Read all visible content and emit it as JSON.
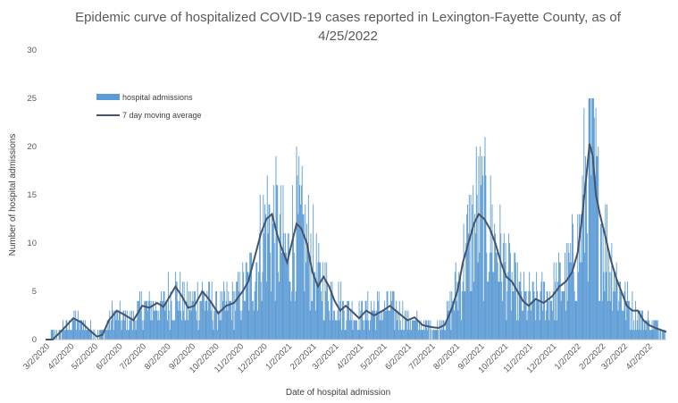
{
  "chart_data": {
    "type": "bar",
    "title_line1": "Epidemic curve of hospitalized COVID-19 cases reported in Lexington-Fayette County, as of",
    "title_line2": "4/25/2022",
    "xlabel": "Date of hospital admission",
    "ylabel": "Number of hospital admissions",
    "ylim": [
      0,
      30
    ],
    "yticks": [
      0,
      5,
      10,
      15,
      20,
      25,
      30
    ],
    "xlim": [
      "2020-03-01",
      "2022-04-24"
    ],
    "x_tick_dates": [
      "2020-03-02",
      "2020-04-02",
      "2020-05-02",
      "2020-06-02",
      "2020-07-02",
      "2020-08-02",
      "2020-09-02",
      "2020-10-02",
      "2020-11-02",
      "2020-12-02",
      "2021-01-02",
      "2021-02-02",
      "2021-03-02",
      "2021-04-02",
      "2021-05-02",
      "2021-06-02",
      "2021-07-02",
      "2021-08-02",
      "2021-09-02",
      "2021-10-02",
      "2021-11-02",
      "2021-12-02",
      "2022-01-02",
      "2022-02-02",
      "2022-03-02",
      "2022-04-02"
    ],
    "x_tick_labels": [
      "3/2/2020",
      "4/2/2020",
      "5/2/2020",
      "6/2/2020",
      "7/2/2020",
      "8/2/2020",
      "9/2/2020",
      "10/2/2020",
      "11/2/2020",
      "12/2/2020",
      "1/2/2021",
      "2/2/2021",
      "3/2/2021",
      "4/2/2021",
      "5/2/2021",
      "6/2/2021",
      "7/2/2021",
      "8/2/2021",
      "9/2/2021",
      "10/2/2021",
      "11/2/2021",
      "12/2/2021",
      "1/2/2022",
      "2/2/2022",
      "3/2/2022",
      "4/2/2022"
    ],
    "legend": {
      "placement": "top-left"
    },
    "grid": false,
    "series": [
      {
        "name": "hospital admissions",
        "kind": "bar",
        "color": "#5b9bd5",
        "daily_level_estimate": [
          {
            "date": "2020-03-01",
            "value": 0
          },
          {
            "date": "2020-03-20",
            "value": 1
          },
          {
            "date": "2020-04-05",
            "value": 2
          },
          {
            "date": "2020-04-25",
            "value": 1
          },
          {
            "date": "2020-05-10",
            "value": 0.5
          },
          {
            "date": "2020-05-25",
            "value": 2.5
          },
          {
            "date": "2020-06-15",
            "value": 2
          },
          {
            "date": "2020-07-05",
            "value": 3.5
          },
          {
            "date": "2020-07-25",
            "value": 3.3
          },
          {
            "date": "2020-08-10",
            "value": 5
          },
          {
            "date": "2020-08-25",
            "value": 3.5
          },
          {
            "date": "2020-09-15",
            "value": 4.5
          },
          {
            "date": "2020-10-05",
            "value": 3
          },
          {
            "date": "2020-10-25",
            "value": 4
          },
          {
            "date": "2020-11-15",
            "value": 6
          },
          {
            "date": "2020-12-05",
            "value": 12
          },
          {
            "date": "2020-12-20",
            "value": 11
          },
          {
            "date": "2020-12-31",
            "value": 8
          },
          {
            "date": "2021-01-10",
            "value": 12
          },
          {
            "date": "2021-01-25",
            "value": 10
          },
          {
            "date": "2021-02-10",
            "value": 6
          },
          {
            "date": "2021-02-25",
            "value": 5
          },
          {
            "date": "2021-03-15",
            "value": 3
          },
          {
            "date": "2021-04-01",
            "value": 2.5
          },
          {
            "date": "2021-04-15",
            "value": 3
          },
          {
            "date": "2021-05-01",
            "value": 3
          },
          {
            "date": "2021-05-10",
            "value": 3.5
          },
          {
            "date": "2021-06-01",
            "value": 2
          },
          {
            "date": "2021-06-20",
            "value": 1.5
          },
          {
            "date": "2021-07-10",
            "value": 1.2
          },
          {
            "date": "2021-07-25",
            "value": 3
          },
          {
            "date": "2021-08-15",
            "value": 9
          },
          {
            "date": "2021-08-28",
            "value": 13
          },
          {
            "date": "2021-09-10",
            "value": 12
          },
          {
            "date": "2021-09-25",
            "value": 9
          },
          {
            "date": "2021-10-10",
            "value": 6
          },
          {
            "date": "2021-10-25",
            "value": 4
          },
          {
            "date": "2021-11-15",
            "value": 4
          },
          {
            "date": "2021-12-05",
            "value": 5
          },
          {
            "date": "2021-12-20",
            "value": 6.5
          },
          {
            "date": "2022-01-05",
            "value": 10
          },
          {
            "date": "2022-01-15",
            "value": 19
          },
          {
            "date": "2022-01-20",
            "value": 20
          },
          {
            "date": "2022-01-28",
            "value": 13
          },
          {
            "date": "2022-02-10",
            "value": 9
          },
          {
            "date": "2022-02-25",
            "value": 5
          },
          {
            "date": "2022-03-10",
            "value": 3
          },
          {
            "date": "2022-03-25",
            "value": 2
          },
          {
            "date": "2022-04-10",
            "value": 1.5
          },
          {
            "date": "2022-04-24",
            "value": 1
          }
        ]
      },
      {
        "name": "7 day moving average",
        "kind": "line",
        "color": "#44546a",
        "points": [
          {
            "date": "2020-03-01",
            "value": 0
          },
          {
            "date": "2020-03-10",
            "value": 0
          },
          {
            "date": "2020-03-20",
            "value": 0.8
          },
          {
            "date": "2020-03-28",
            "value": 1.5
          },
          {
            "date": "2020-04-05",
            "value": 2.2
          },
          {
            "date": "2020-04-15",
            "value": 1.8
          },
          {
            "date": "2020-04-25",
            "value": 1
          },
          {
            "date": "2020-05-05",
            "value": 0.3
          },
          {
            "date": "2020-05-12",
            "value": 0.5
          },
          {
            "date": "2020-05-20",
            "value": 2
          },
          {
            "date": "2020-05-30",
            "value": 3
          },
          {
            "date": "2020-06-10",
            "value": 2.5
          },
          {
            "date": "2020-06-20",
            "value": 2
          },
          {
            "date": "2020-07-01",
            "value": 3.5
          },
          {
            "date": "2020-07-10",
            "value": 3.3
          },
          {
            "date": "2020-07-20",
            "value": 3.8
          },
          {
            "date": "2020-07-28",
            "value": 3.4
          },
          {
            "date": "2020-08-05",
            "value": 4.5
          },
          {
            "date": "2020-08-12",
            "value": 5.5
          },
          {
            "date": "2020-08-20",
            "value": 4.5
          },
          {
            "date": "2020-08-28",
            "value": 3.3
          },
          {
            "date": "2020-09-05",
            "value": 3.5
          },
          {
            "date": "2020-09-15",
            "value": 5
          },
          {
            "date": "2020-09-25",
            "value": 4
          },
          {
            "date": "2020-10-05",
            "value": 2.7
          },
          {
            "date": "2020-10-15",
            "value": 3.5
          },
          {
            "date": "2020-10-25",
            "value": 3.8
          },
          {
            "date": "2020-11-05",
            "value": 5
          },
          {
            "date": "2020-11-12",
            "value": 6
          },
          {
            "date": "2020-11-20",
            "value": 8.5
          },
          {
            "date": "2020-11-28",
            "value": 11
          },
          {
            "date": "2020-12-05",
            "value": 12.5
          },
          {
            "date": "2020-12-12",
            "value": 13
          },
          {
            "date": "2020-12-18",
            "value": 11
          },
          {
            "date": "2020-12-24",
            "value": 9.5
          },
          {
            "date": "2020-12-31",
            "value": 8
          },
          {
            "date": "2021-01-06",
            "value": 10
          },
          {
            "date": "2021-01-12",
            "value": 12
          },
          {
            "date": "2021-01-18",
            "value": 11.5
          },
          {
            "date": "2021-01-25",
            "value": 10
          },
          {
            "date": "2021-02-01",
            "value": 7
          },
          {
            "date": "2021-02-08",
            "value": 5.5
          },
          {
            "date": "2021-02-15",
            "value": 6.5
          },
          {
            "date": "2021-02-22",
            "value": 5.5
          },
          {
            "date": "2021-03-01",
            "value": 4
          },
          {
            "date": "2021-03-08",
            "value": 3
          },
          {
            "date": "2021-03-15",
            "value": 3.5
          },
          {
            "date": "2021-03-22",
            "value": 3
          },
          {
            "date": "2021-04-01",
            "value": 2.2
          },
          {
            "date": "2021-04-10",
            "value": 3
          },
          {
            "date": "2021-04-20",
            "value": 2.5
          },
          {
            "date": "2021-05-01",
            "value": 3
          },
          {
            "date": "2021-05-10",
            "value": 3.5
          },
          {
            "date": "2021-05-20",
            "value": 2.8
          },
          {
            "date": "2021-06-01",
            "value": 2
          },
          {
            "date": "2021-06-10",
            "value": 2.3
          },
          {
            "date": "2021-06-20",
            "value": 1.5
          },
          {
            "date": "2021-07-01",
            "value": 1.3
          },
          {
            "date": "2021-07-10",
            "value": 1.2
          },
          {
            "date": "2021-07-18",
            "value": 1.5
          },
          {
            "date": "2021-07-26",
            "value": 3
          },
          {
            "date": "2021-08-03",
            "value": 5
          },
          {
            "date": "2021-08-10",
            "value": 8
          },
          {
            "date": "2021-08-17",
            "value": 10
          },
          {
            "date": "2021-08-24",
            "value": 12
          },
          {
            "date": "2021-08-30",
            "value": 13
          },
          {
            "date": "2021-09-06",
            "value": 12.5
          },
          {
            "date": "2021-09-13",
            "value": 11.5
          },
          {
            "date": "2021-09-20",
            "value": 10
          },
          {
            "date": "2021-09-27",
            "value": 8
          },
          {
            "date": "2021-10-04",
            "value": 6.5
          },
          {
            "date": "2021-10-11",
            "value": 6
          },
          {
            "date": "2021-10-18",
            "value": 5
          },
          {
            "date": "2021-10-25",
            "value": 4
          },
          {
            "date": "2021-11-01",
            "value": 3.5
          },
          {
            "date": "2021-11-10",
            "value": 4.2
          },
          {
            "date": "2021-11-20",
            "value": 3.8
          },
          {
            "date": "2021-12-01",
            "value": 4.5
          },
          {
            "date": "2021-12-10",
            "value": 5.5
          },
          {
            "date": "2021-12-18",
            "value": 6
          },
          {
            "date": "2021-12-26",
            "value": 7
          },
          {
            "date": "2022-01-02",
            "value": 9
          },
          {
            "date": "2022-01-08",
            "value": 13
          },
          {
            "date": "2022-01-13",
            "value": 17
          },
          {
            "date": "2022-01-17",
            "value": 20.3
          },
          {
            "date": "2022-01-21",
            "value": 19
          },
          {
            "date": "2022-01-25",
            "value": 15
          },
          {
            "date": "2022-01-30",
            "value": 13
          },
          {
            "date": "2022-02-05",
            "value": 11
          },
          {
            "date": "2022-02-12",
            "value": 8.5
          },
          {
            "date": "2022-02-19",
            "value": 6.5
          },
          {
            "date": "2022-02-26",
            "value": 5
          },
          {
            "date": "2022-03-05",
            "value": 3.5
          },
          {
            "date": "2022-03-12",
            "value": 3
          },
          {
            "date": "2022-03-19",
            "value": 3
          },
          {
            "date": "2022-03-26",
            "value": 2
          },
          {
            "date": "2022-04-02",
            "value": 1.5
          },
          {
            "date": "2022-04-10",
            "value": 1.2
          },
          {
            "date": "2022-04-17",
            "value": 1
          },
          {
            "date": "2022-04-24",
            "value": 0.8
          }
        ]
      }
    ]
  }
}
